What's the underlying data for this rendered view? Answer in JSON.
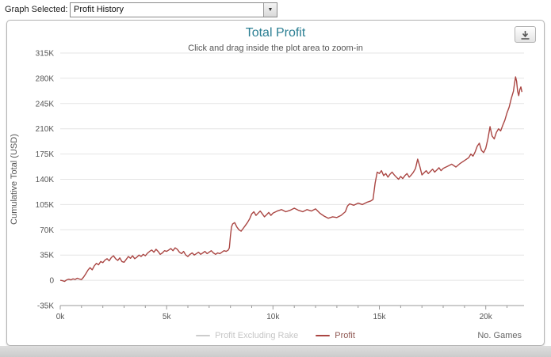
{
  "toolbar": {
    "graph_selected_label": "Graph Selected:",
    "dropdown_value": "Profit History"
  },
  "chart": {
    "title": "Total Profit",
    "subtitle": "Click and drag inside the plot area to zoom-in",
    "y_axis_title": "Cumulative Total (USD)",
    "x_axis_title": "No. Games",
    "legend": [
      {
        "label": "Profit Excluding Rake",
        "color": "#cccccc",
        "text_color": "#c6c6c6",
        "hidden": true
      },
      {
        "label": "Profit",
        "color": "#AA4643",
        "text_color": "#8f5752",
        "hidden": false
      }
    ],
    "style": {
      "title_color": "#2b7f93",
      "subtitle_color": "#555555",
      "line_color": "#AA4643",
      "grid_color": "#e4e4e4",
      "axis_color": "#999999",
      "tick_label_color": "#555555"
    }
  },
  "chart_data": {
    "type": "line",
    "title": "Total Profit",
    "subtitle": "Click and drag inside the plot area to zoom-in",
    "xlabel": "No. Games",
    "ylabel": "Cumulative Total (USD)",
    "xlim": [
      0,
      21800
    ],
    "ylim": [
      -35000,
      315000
    ],
    "x_ticks": [
      0,
      5000,
      10000,
      15000,
      20000
    ],
    "x_tick_labels": [
      "0k",
      "5k",
      "10k",
      "15k",
      "20k"
    ],
    "x_minor_tick_step": 1000,
    "y_ticks": [
      -35000,
      0,
      35000,
      70000,
      105000,
      140000,
      175000,
      210000,
      245000,
      280000,
      315000
    ],
    "y_tick_labels": [
      "-35K",
      "0",
      "35K",
      "70K",
      "105K",
      "140K",
      "175K",
      "210K",
      "245K",
      "280K",
      "315K"
    ],
    "grid": "horizontal",
    "legend_position": "bottom-center",
    "series": [
      {
        "name": "Profit Excluding Rake",
        "color": "#cccccc",
        "visible": false,
        "points": []
      },
      {
        "name": "Profit",
        "color": "#AA4643",
        "visible": true,
        "points": [
          [
            0,
            0
          ],
          [
            100,
            -500
          ],
          [
            200,
            -1500
          ],
          [
            300,
            500
          ],
          [
            400,
            1500
          ],
          [
            500,
            500
          ],
          [
            600,
            2000
          ],
          [
            700,
            1200
          ],
          [
            800,
            2800
          ],
          [
            900,
            1800
          ],
          [
            1000,
            1000
          ],
          [
            1100,
            4500
          ],
          [
            1200,
            9000
          ],
          [
            1300,
            14000
          ],
          [
            1400,
            17500
          ],
          [
            1500,
            14500
          ],
          [
            1600,
            20000
          ],
          [
            1700,
            23500
          ],
          [
            1800,
            21500
          ],
          [
            1900,
            26000
          ],
          [
            2000,
            24500
          ],
          [
            2100,
            28000
          ],
          [
            2200,
            30000
          ],
          [
            2300,
            27000
          ],
          [
            2400,
            31500
          ],
          [
            2500,
            34000
          ],
          [
            2600,
            30000
          ],
          [
            2700,
            27500
          ],
          [
            2800,
            31000
          ],
          [
            2900,
            26000
          ],
          [
            3000,
            25000
          ],
          [
            3100,
            29000
          ],
          [
            3200,
            33000
          ],
          [
            3300,
            30500
          ],
          [
            3400,
            34000
          ],
          [
            3500,
            30000
          ],
          [
            3600,
            32000
          ],
          [
            3700,
            35000
          ],
          [
            3800,
            33000
          ],
          [
            3900,
            36000
          ],
          [
            4000,
            34000
          ],
          [
            4100,
            37500
          ],
          [
            4200,
            40000
          ],
          [
            4300,
            42000
          ],
          [
            4400,
            39000
          ],
          [
            4500,
            43000
          ],
          [
            4600,
            40000
          ],
          [
            4700,
            36000
          ],
          [
            4800,
            38000
          ],
          [
            4900,
            41000
          ],
          [
            5000,
            40000
          ],
          [
            5100,
            42000
          ],
          [
            5200,
            44000
          ],
          [
            5300,
            41000
          ],
          [
            5400,
            45000
          ],
          [
            5500,
            43000
          ],
          [
            5600,
            39000
          ],
          [
            5700,
            37000
          ],
          [
            5800,
            40000
          ],
          [
            5900,
            35000
          ],
          [
            6000,
            33000
          ],
          [
            6100,
            36000
          ],
          [
            6200,
            38000
          ],
          [
            6300,
            35000
          ],
          [
            6400,
            37000
          ],
          [
            6500,
            39000
          ],
          [
            6600,
            36000
          ],
          [
            6700,
            38000
          ],
          [
            6800,
            40000
          ],
          [
            6900,
            37000
          ],
          [
            7000,
            39000
          ],
          [
            7100,
            41000
          ],
          [
            7200,
            38000
          ],
          [
            7300,
            36000
          ],
          [
            7400,
            38000
          ],
          [
            7500,
            37000
          ],
          [
            7600,
            39000
          ],
          [
            7700,
            41000
          ],
          [
            7800,
            40000
          ],
          [
            7900,
            42000
          ],
          [
            7950,
            45000
          ],
          [
            8000,
            62000
          ],
          [
            8050,
            74000
          ],
          [
            8100,
            78000
          ],
          [
            8200,
            80000
          ],
          [
            8300,
            74000
          ],
          [
            8400,
            70000
          ],
          [
            8500,
            68000
          ],
          [
            8600,
            72000
          ],
          [
            8700,
            76000
          ],
          [
            8800,
            80000
          ],
          [
            8900,
            85000
          ],
          [
            9000,
            92000
          ],
          [
            9100,
            95000
          ],
          [
            9200,
            90000
          ],
          [
            9300,
            93000
          ],
          [
            9400,
            96000
          ],
          [
            9500,
            92000
          ],
          [
            9600,
            88000
          ],
          [
            9700,
            91000
          ],
          [
            9800,
            94000
          ],
          [
            9900,
            90000
          ],
          [
            10000,
            93000
          ],
          [
            10200,
            96000
          ],
          [
            10400,
            98000
          ],
          [
            10600,
            95000
          ],
          [
            10800,
            97000
          ],
          [
            11000,
            100000
          ],
          [
            11200,
            97000
          ],
          [
            11400,
            95000
          ],
          [
            11600,
            98000
          ],
          [
            11800,
            96000
          ],
          [
            12000,
            99000
          ],
          [
            12200,
            93000
          ],
          [
            12400,
            89000
          ],
          [
            12600,
            86000
          ],
          [
            12800,
            88000
          ],
          [
            13000,
            87000
          ],
          [
            13200,
            90000
          ],
          [
            13400,
            95000
          ],
          [
            13500,
            103000
          ],
          [
            13600,
            106000
          ],
          [
            13800,
            104000
          ],
          [
            14000,
            107000
          ],
          [
            14200,
            105000
          ],
          [
            14400,
            108000
          ],
          [
            14600,
            110000
          ],
          [
            14700,
            112000
          ],
          [
            14800,
            135000
          ],
          [
            14900,
            150000
          ],
          [
            15000,
            148000
          ],
          [
            15100,
            152000
          ],
          [
            15200,
            145000
          ],
          [
            15300,
            148000
          ],
          [
            15400,
            143000
          ],
          [
            15500,
            147000
          ],
          [
            15600,
            150000
          ],
          [
            15700,
            146000
          ],
          [
            15800,
            143000
          ],
          [
            15900,
            140000
          ],
          [
            16000,
            144000
          ],
          [
            16100,
            141000
          ],
          [
            16200,
            145000
          ],
          [
            16300,
            148000
          ],
          [
            16400,
            143000
          ],
          [
            16500,
            146000
          ],
          [
            16600,
            150000
          ],
          [
            16700,
            155000
          ],
          [
            16800,
            168000
          ],
          [
            16900,
            158000
          ],
          [
            17000,
            146000
          ],
          [
            17100,
            149000
          ],
          [
            17200,
            152000
          ],
          [
            17300,
            148000
          ],
          [
            17400,
            151000
          ],
          [
            17500,
            154000
          ],
          [
            17600,
            150000
          ],
          [
            17700,
            153000
          ],
          [
            17800,
            156000
          ],
          [
            17900,
            152000
          ],
          [
            18000,
            155000
          ],
          [
            18200,
            158000
          ],
          [
            18400,
            161000
          ],
          [
            18600,
            157000
          ],
          [
            18800,
            162000
          ],
          [
            19000,
            166000
          ],
          [
            19200,
            170000
          ],
          [
            19300,
            175000
          ],
          [
            19400,
            172000
          ],
          [
            19500,
            178000
          ],
          [
            19600,
            186000
          ],
          [
            19700,
            190000
          ],
          [
            19800,
            180000
          ],
          [
            19900,
            177000
          ],
          [
            20000,
            183000
          ],
          [
            20100,
            196000
          ],
          [
            20200,
            213000
          ],
          [
            20300,
            200000
          ],
          [
            20400,
            196000
          ],
          [
            20500,
            205000
          ],
          [
            20600,
            210000
          ],
          [
            20700,
            207000
          ],
          [
            20800,
            215000
          ],
          [
            20900,
            222000
          ],
          [
            21000,
            232000
          ],
          [
            21100,
            240000
          ],
          [
            21200,
            252000
          ],
          [
            21300,
            262000
          ],
          [
            21350,
            272000
          ],
          [
            21400,
            282000
          ],
          [
            21450,
            276000
          ],
          [
            21500,
            262000
          ],
          [
            21550,
            256000
          ],
          [
            21600,
            264000
          ],
          [
            21650,
            268000
          ],
          [
            21700,
            261000
          ]
        ]
      }
    ]
  }
}
